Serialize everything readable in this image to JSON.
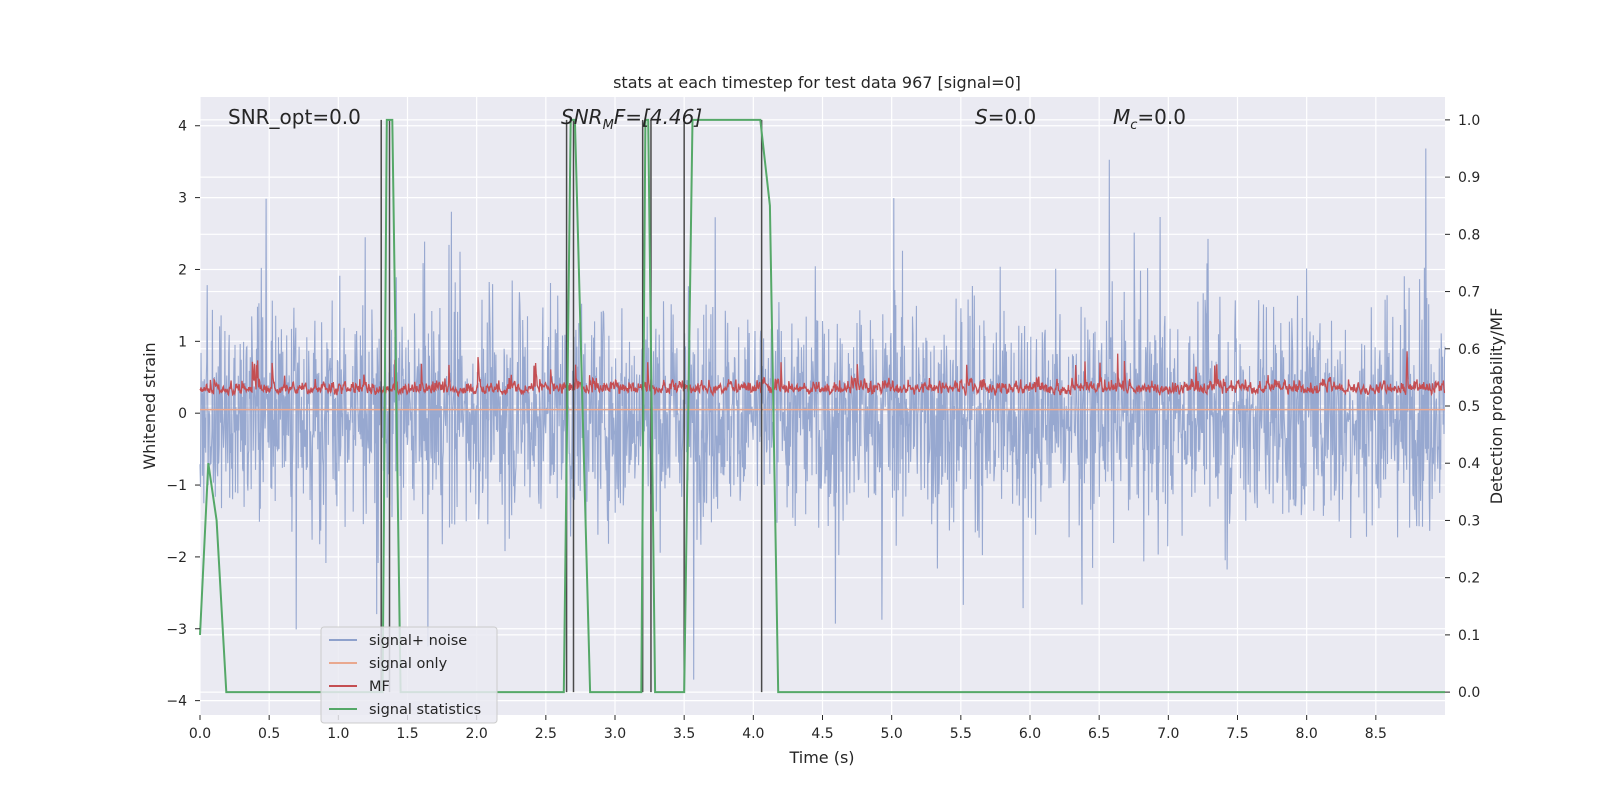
{
  "chart_data": {
    "type": "line",
    "title": "stats at each timestep for test data 967 [signal=0]",
    "xlabel": "Time (s)",
    "ylabel": "Whitened strain",
    "y2label": "Detection probability/MF",
    "xlim": [
      0.0,
      9.0
    ],
    "ylim": [
      -4.2,
      4.4
    ],
    "y2lim": [
      -0.04,
      1.04
    ],
    "xticks": [
      "0.0",
      "0.5",
      "1.0",
      "1.5",
      "2.0",
      "2.5",
      "3.0",
      "3.5",
      "4.0",
      "4.5",
      "5.0",
      "5.5",
      "6.0",
      "6.5",
      "7.0",
      "7.5",
      "8.0",
      "8.5"
    ],
    "xtick_values": [
      0.0,
      0.5,
      1.0,
      1.5,
      2.0,
      2.5,
      3.0,
      3.5,
      4.0,
      4.5,
      5.0,
      5.5,
      6.0,
      6.5,
      7.0,
      7.5,
      8.0,
      8.5
    ],
    "yticks": [
      "4",
      "3",
      "2",
      "1",
      "0",
      "−1",
      "−2",
      "−3",
      "−4"
    ],
    "ytick_values": [
      4,
      3,
      2,
      1,
      0,
      -1,
      -2,
      -3,
      -4
    ],
    "y2ticks": [
      "1.0",
      "0.9",
      "0.8",
      "0.7",
      "0.6",
      "0.5",
      "0.4",
      "0.3",
      "0.2",
      "0.1",
      "0.0"
    ],
    "y2tick_values": [
      1.0,
      0.9,
      0.8,
      0.7,
      0.6,
      0.5,
      0.4,
      0.3,
      0.2,
      0.1,
      0.0
    ],
    "grid": true,
    "legend_position": "lower-left",
    "annotations": {
      "snr_opt": "SNR_opt=0.0",
      "snr_mf_sym": "SNR",
      "snr_mf_sub": "M",
      "snr_mf_rest": "F=[4.46]",
      "s_sym": "S",
      "s_rest": "=0.0",
      "mc_sym": "M",
      "mc_sub": "c",
      "mc_rest": "=0.0"
    },
    "series": [
      {
        "name": "signal+ noise",
        "color": "#8ea1cc",
        "description_values": "noise fluctuating roughly between -3.7 and 3.9"
      },
      {
        "name": "signal only",
        "color": "#e9a88f",
        "values": [
          [
            0.0,
            0.05
          ],
          [
            9.0,
            0.05
          ]
        ]
      },
      {
        "name": "MF",
        "color": "#c44e52",
        "description_values": "fluctuating roughly between 0.0 and 0.9"
      },
      {
        "name": "signal statistics",
        "color": "#55a868",
        "points": [
          [
            0.0,
            0.1
          ],
          [
            0.06,
            0.4
          ],
          [
            0.12,
            0.3
          ],
          [
            0.19,
            0.0
          ],
          [
            0.24,
            0.0
          ],
          [
            1.32,
            0.0
          ],
          [
            1.35,
            1.0
          ],
          [
            1.39,
            1.0
          ],
          [
            1.45,
            0.0
          ],
          [
            2.63,
            0.0
          ],
          [
            2.68,
            1.0
          ],
          [
            2.71,
            1.0
          ],
          [
            2.82,
            0.0
          ],
          [
            3.19,
            0.0
          ],
          [
            3.22,
            1.0
          ],
          [
            3.24,
            1.0
          ],
          [
            3.29,
            0.0
          ],
          [
            3.5,
            0.0
          ],
          [
            3.56,
            1.0
          ],
          [
            4.05,
            1.0
          ],
          [
            4.12,
            0.85
          ],
          [
            4.18,
            0.0
          ],
          [
            9.0,
            0.0
          ]
        ]
      },
      {
        "name": "detections",
        "color": "#4a4a4a",
        "x_values": [
          1.31,
          1.37,
          2.65,
          2.7,
          3.2,
          3.26,
          3.5,
          4.06
        ]
      }
    ]
  },
  "legend": [
    {
      "label": "signal+ noise",
      "color": "#8ea1cc"
    },
    {
      "label": "signal only",
      "color": "#e9a88f"
    },
    {
      "label": "MF",
      "color": "#c44e52"
    },
    {
      "label": "signal statistics",
      "color": "#55a868"
    }
  ]
}
